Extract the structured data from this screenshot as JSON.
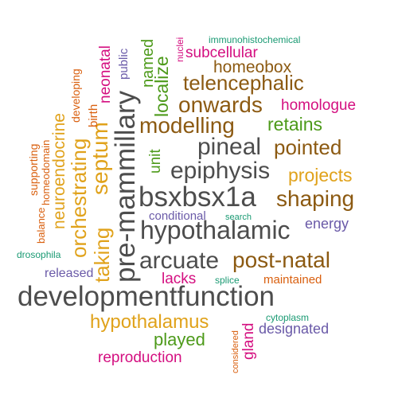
{
  "palette": {
    "gray": "#4d4d4d",
    "brown": "#8c5a12",
    "gold": "#e0a21b",
    "green": "#4d9a1a",
    "magenta": "#d40f80",
    "orange": "#d95f0e",
    "purple": "#6a5aa8",
    "teal": "#1a9a73"
  },
  "words": [
    {
      "text": "developmentfunction",
      "color": "gray"
    },
    {
      "text": "bsxbsx1a",
      "color": "gray"
    },
    {
      "text": "hypothalamic",
      "color": "gray"
    },
    {
      "text": "pre-mammillary",
      "color": "gray"
    },
    {
      "text": "epiphysis",
      "color": "gray"
    },
    {
      "text": "arcuate",
      "color": "gray"
    },
    {
      "text": "pineal",
      "color": "gray"
    },
    {
      "text": "modelling",
      "color": "brown"
    },
    {
      "text": "onwards",
      "color": "brown"
    },
    {
      "text": "telencephalic",
      "color": "brown"
    },
    {
      "text": "shaping",
      "color": "brown"
    },
    {
      "text": "pointed",
      "color": "brown"
    },
    {
      "text": "post-natal",
      "color": "brown"
    },
    {
      "text": "homeobox",
      "color": "brown"
    },
    {
      "text": "projects",
      "color": "gold"
    },
    {
      "text": "hypothalamus",
      "color": "gold"
    },
    {
      "text": "septum",
      "color": "gold"
    },
    {
      "text": "orchestrating",
      "color": "gold"
    },
    {
      "text": "neuroendocrine",
      "color": "gold"
    },
    {
      "text": "taking",
      "color": "gold"
    },
    {
      "text": "retains",
      "color": "green"
    },
    {
      "text": "localize",
      "color": "green"
    },
    {
      "text": "named",
      "color": "green"
    },
    {
      "text": "unit",
      "color": "green"
    },
    {
      "text": "played",
      "color": "green"
    },
    {
      "text": "homologue",
      "color": "magenta"
    },
    {
      "text": "subcellular",
      "color": "magenta"
    },
    {
      "text": "neonatal",
      "color": "magenta"
    },
    {
      "text": "lacks",
      "color": "magenta"
    },
    {
      "text": "reproduction",
      "color": "magenta"
    },
    {
      "text": "gland",
      "color": "magenta"
    },
    {
      "text": "nuclei",
      "color": "magenta"
    },
    {
      "text": "maintained",
      "color": "orange"
    },
    {
      "text": "developing",
      "color": "orange"
    },
    {
      "text": "supporting",
      "color": "orange"
    },
    {
      "text": "homeodomain",
      "color": "orange"
    },
    {
      "text": "balance",
      "color": "orange"
    },
    {
      "text": "birth",
      "color": "orange"
    },
    {
      "text": "considered",
      "color": "orange"
    },
    {
      "text": "energy",
      "color": "purple"
    },
    {
      "text": "designated",
      "color": "purple"
    },
    {
      "text": "conditional",
      "color": "purple"
    },
    {
      "text": "public",
      "color": "purple"
    },
    {
      "text": "released",
      "color": "purple"
    },
    {
      "text": "immunohistochemical",
      "color": "teal"
    },
    {
      "text": "search",
      "color": "teal"
    },
    {
      "text": "splice",
      "color": "teal"
    },
    {
      "text": "drosophila",
      "color": "teal"
    },
    {
      "text": "cytoplasm",
      "color": "teal"
    }
  ]
}
